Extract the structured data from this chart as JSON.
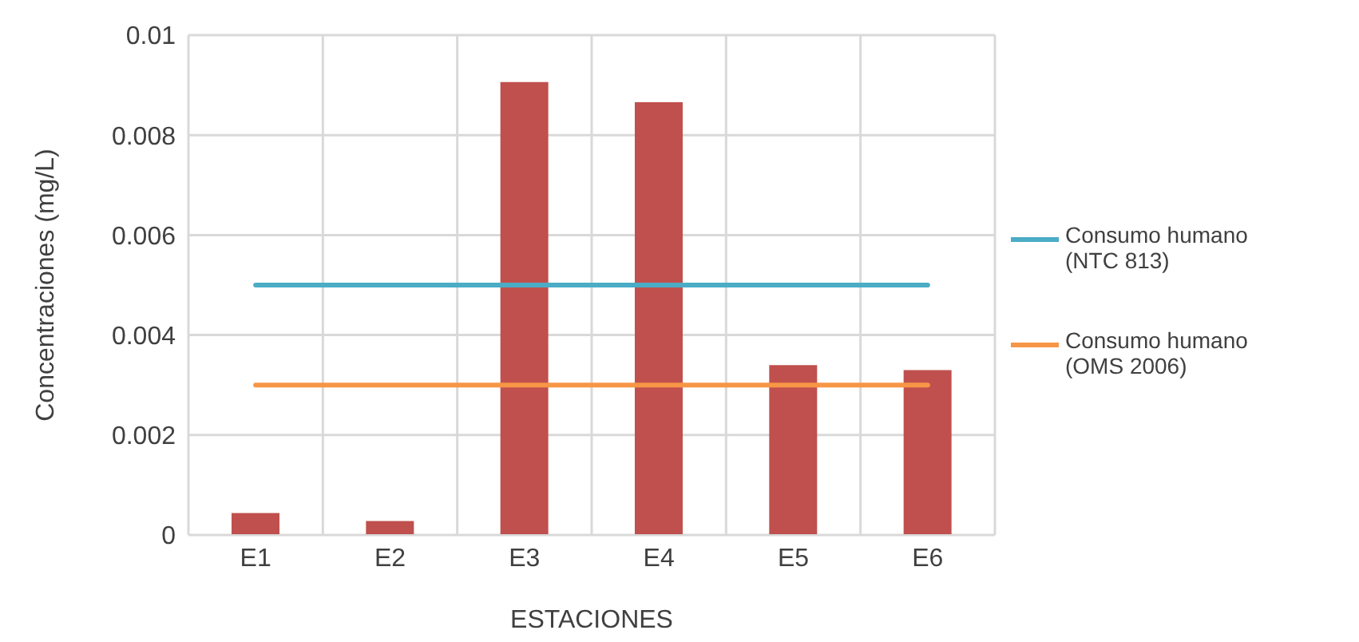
{
  "chart_data": {
    "type": "bar",
    "xlabel": "ESTACIONES",
    "ylabel": "Concentraciones (mg/L)",
    "categories": [
      "E1",
      "E2",
      "E3",
      "E4",
      "E5",
      "E6"
    ],
    "series": [
      {
        "color": "#c0504d",
        "values": [
          0.00044,
          0.00028,
          0.00906,
          0.00866,
          0.0034,
          0.0033
        ]
      },
      {
        "type": "line",
        "name": "Consumo humano (NTC 813)",
        "color": "#4bacc6",
        "values": [
          0.005,
          0.005,
          0.005,
          0.005,
          0.005,
          0.005
        ]
      },
      {
        "type": "line",
        "name": "Consumo humano (OMS 2006)",
        "color": "#f79646",
        "values": [
          0.003,
          0.003,
          0.003,
          0.003,
          0.003,
          0.003
        ]
      }
    ],
    "ylim": [
      0,
      0.01
    ],
    "yticks": [
      0,
      0.002,
      0.004,
      0.006,
      0.008,
      0.01
    ],
    "grid": true,
    "legend": "right",
    "marker": "none",
    "line_style": "solid"
  }
}
